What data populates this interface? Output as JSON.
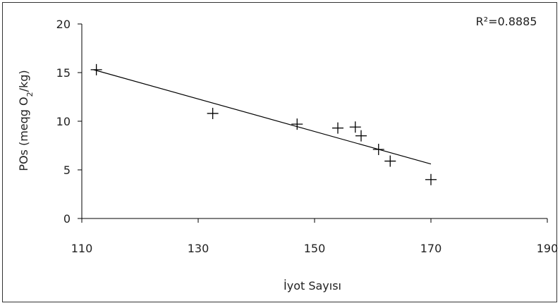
{
  "chart_data": {
    "type": "scatter",
    "xlabel": "İyot Sayısı",
    "ylabel_main": "POs (meqg O",
    "ylabel_sub": "2",
    "ylabel_tail": "/kg)",
    "annotation": "R²=0.8885",
    "xlim": [
      110,
      190
    ],
    "ylim": [
      0,
      20
    ],
    "xticks": [
      110,
      130,
      150,
      170,
      190
    ],
    "yticks": [
      0,
      5,
      10,
      15,
      20
    ],
    "series": [
      {
        "points": [
          {
            "x": 112.5,
            "y": 15.3
          },
          {
            "x": 132.5,
            "y": 10.8
          },
          {
            "x": 147.0,
            "y": 9.7
          },
          {
            "x": 154.0,
            "y": 9.3
          },
          {
            "x": 157.0,
            "y": 9.4
          },
          {
            "x": 158.0,
            "y": 8.5
          },
          {
            "x": 161.0,
            "y": 7.1
          },
          {
            "x": 163.0,
            "y": 5.9
          },
          {
            "x": 170.0,
            "y": 4.0
          }
        ]
      }
    ],
    "trendline": {
      "x1": 112.0,
      "y1": 15.3,
      "x2": 170.0,
      "y2": 5.6
    },
    "grid": false,
    "marker": "plus",
    "color": "#000000"
  }
}
